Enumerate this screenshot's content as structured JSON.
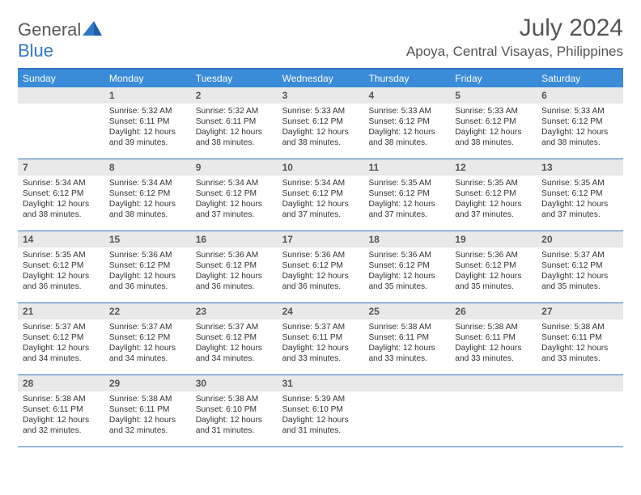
{
  "brand": {
    "word1": "General",
    "word2": "Blue",
    "accent": "#2f78c4",
    "gray": "#5a5a5a"
  },
  "title": "July 2024",
  "location": "Apoya, Central Visayas, Philippines",
  "header_bg": "#3a8bd8",
  "border_color": "#2f78c4",
  "daynum_bg": "#e9e9e9",
  "dow": [
    "Sunday",
    "Monday",
    "Tuesday",
    "Wednesday",
    "Thursday",
    "Friday",
    "Saturday"
  ],
  "weeks": [
    [
      {
        "n": "",
        "s": "",
        "u": "",
        "d": ""
      },
      {
        "n": "1",
        "s": "Sunrise: 5:32 AM",
        "u": "Sunset: 6:11 PM",
        "d": "Daylight: 12 hours and 39 minutes."
      },
      {
        "n": "2",
        "s": "Sunrise: 5:32 AM",
        "u": "Sunset: 6:11 PM",
        "d": "Daylight: 12 hours and 38 minutes."
      },
      {
        "n": "3",
        "s": "Sunrise: 5:33 AM",
        "u": "Sunset: 6:12 PM",
        "d": "Daylight: 12 hours and 38 minutes."
      },
      {
        "n": "4",
        "s": "Sunrise: 5:33 AM",
        "u": "Sunset: 6:12 PM",
        "d": "Daylight: 12 hours and 38 minutes."
      },
      {
        "n": "5",
        "s": "Sunrise: 5:33 AM",
        "u": "Sunset: 6:12 PM",
        "d": "Daylight: 12 hours and 38 minutes."
      },
      {
        "n": "6",
        "s": "Sunrise: 5:33 AM",
        "u": "Sunset: 6:12 PM",
        "d": "Daylight: 12 hours and 38 minutes."
      }
    ],
    [
      {
        "n": "7",
        "s": "Sunrise: 5:34 AM",
        "u": "Sunset: 6:12 PM",
        "d": "Daylight: 12 hours and 38 minutes."
      },
      {
        "n": "8",
        "s": "Sunrise: 5:34 AM",
        "u": "Sunset: 6:12 PM",
        "d": "Daylight: 12 hours and 38 minutes."
      },
      {
        "n": "9",
        "s": "Sunrise: 5:34 AM",
        "u": "Sunset: 6:12 PM",
        "d": "Daylight: 12 hours and 37 minutes."
      },
      {
        "n": "10",
        "s": "Sunrise: 5:34 AM",
        "u": "Sunset: 6:12 PM",
        "d": "Daylight: 12 hours and 37 minutes."
      },
      {
        "n": "11",
        "s": "Sunrise: 5:35 AM",
        "u": "Sunset: 6:12 PM",
        "d": "Daylight: 12 hours and 37 minutes."
      },
      {
        "n": "12",
        "s": "Sunrise: 5:35 AM",
        "u": "Sunset: 6:12 PM",
        "d": "Daylight: 12 hours and 37 minutes."
      },
      {
        "n": "13",
        "s": "Sunrise: 5:35 AM",
        "u": "Sunset: 6:12 PM",
        "d": "Daylight: 12 hours and 37 minutes."
      }
    ],
    [
      {
        "n": "14",
        "s": "Sunrise: 5:35 AM",
        "u": "Sunset: 6:12 PM",
        "d": "Daylight: 12 hours and 36 minutes."
      },
      {
        "n": "15",
        "s": "Sunrise: 5:36 AM",
        "u": "Sunset: 6:12 PM",
        "d": "Daylight: 12 hours and 36 minutes."
      },
      {
        "n": "16",
        "s": "Sunrise: 5:36 AM",
        "u": "Sunset: 6:12 PM",
        "d": "Daylight: 12 hours and 36 minutes."
      },
      {
        "n": "17",
        "s": "Sunrise: 5:36 AM",
        "u": "Sunset: 6:12 PM",
        "d": "Daylight: 12 hours and 36 minutes."
      },
      {
        "n": "18",
        "s": "Sunrise: 5:36 AM",
        "u": "Sunset: 6:12 PM",
        "d": "Daylight: 12 hours and 35 minutes."
      },
      {
        "n": "19",
        "s": "Sunrise: 5:36 AM",
        "u": "Sunset: 6:12 PM",
        "d": "Daylight: 12 hours and 35 minutes."
      },
      {
        "n": "20",
        "s": "Sunrise: 5:37 AM",
        "u": "Sunset: 6:12 PM",
        "d": "Daylight: 12 hours and 35 minutes."
      }
    ],
    [
      {
        "n": "21",
        "s": "Sunrise: 5:37 AM",
        "u": "Sunset: 6:12 PM",
        "d": "Daylight: 12 hours and 34 minutes."
      },
      {
        "n": "22",
        "s": "Sunrise: 5:37 AM",
        "u": "Sunset: 6:12 PM",
        "d": "Daylight: 12 hours and 34 minutes."
      },
      {
        "n": "23",
        "s": "Sunrise: 5:37 AM",
        "u": "Sunset: 6:12 PM",
        "d": "Daylight: 12 hours and 34 minutes."
      },
      {
        "n": "24",
        "s": "Sunrise: 5:37 AM",
        "u": "Sunset: 6:11 PM",
        "d": "Daylight: 12 hours and 33 minutes."
      },
      {
        "n": "25",
        "s": "Sunrise: 5:38 AM",
        "u": "Sunset: 6:11 PM",
        "d": "Daylight: 12 hours and 33 minutes."
      },
      {
        "n": "26",
        "s": "Sunrise: 5:38 AM",
        "u": "Sunset: 6:11 PM",
        "d": "Daylight: 12 hours and 33 minutes."
      },
      {
        "n": "27",
        "s": "Sunrise: 5:38 AM",
        "u": "Sunset: 6:11 PM",
        "d": "Daylight: 12 hours and 33 minutes."
      }
    ],
    [
      {
        "n": "28",
        "s": "Sunrise: 5:38 AM",
        "u": "Sunset: 6:11 PM",
        "d": "Daylight: 12 hours and 32 minutes."
      },
      {
        "n": "29",
        "s": "Sunrise: 5:38 AM",
        "u": "Sunset: 6:11 PM",
        "d": "Daylight: 12 hours and 32 minutes."
      },
      {
        "n": "30",
        "s": "Sunrise: 5:38 AM",
        "u": "Sunset: 6:10 PM",
        "d": "Daylight: 12 hours and 31 minutes."
      },
      {
        "n": "31",
        "s": "Sunrise: 5:39 AM",
        "u": "Sunset: 6:10 PM",
        "d": "Daylight: 12 hours and 31 minutes."
      },
      {
        "n": "",
        "s": "",
        "u": "",
        "d": ""
      },
      {
        "n": "",
        "s": "",
        "u": "",
        "d": ""
      },
      {
        "n": "",
        "s": "",
        "u": "",
        "d": ""
      }
    ]
  ]
}
